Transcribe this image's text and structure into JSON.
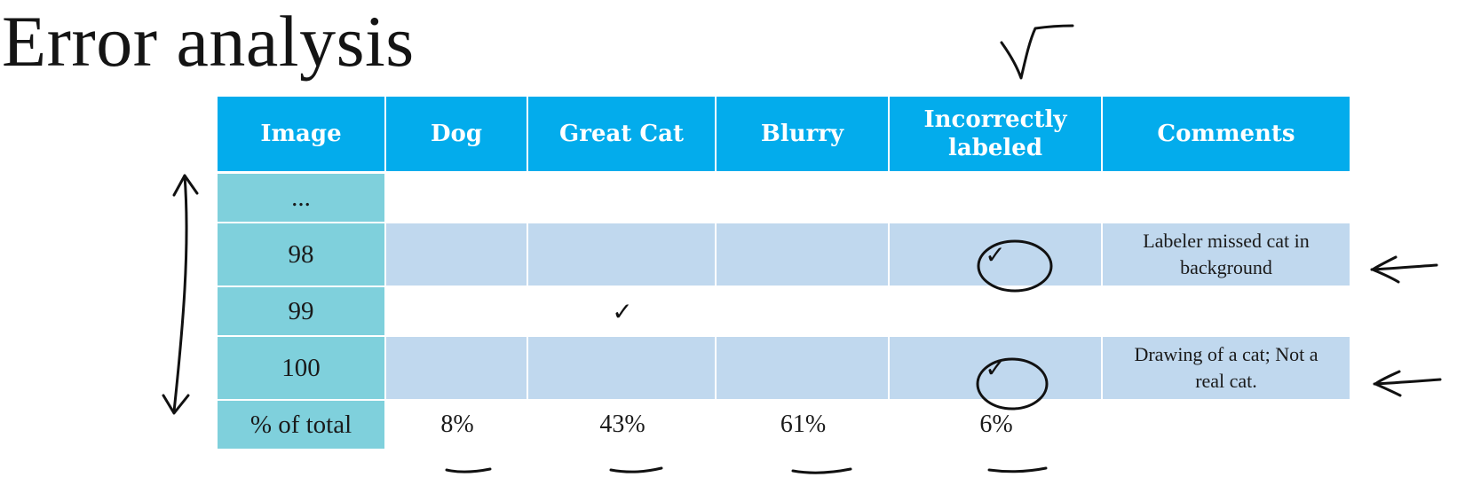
{
  "title": "Error analysis",
  "table": {
    "headers": [
      "Image",
      "Dog",
      "Great Cat",
      "Blurry",
      "Incorrectly labeled",
      "Comments"
    ],
    "rows": [
      {
        "image": "...",
        "dog": "",
        "great_cat": "",
        "blurry": "",
        "incorrectly_labeled": "",
        "comments": ""
      },
      {
        "image": "98",
        "dog": "",
        "great_cat": "",
        "blurry": "",
        "incorrectly_labeled": "✓",
        "comments": "Labeler missed cat in background"
      },
      {
        "image": "99",
        "dog": "",
        "great_cat": "✓",
        "blurry": "",
        "incorrectly_labeled": "",
        "comments": ""
      },
      {
        "image": "100",
        "dog": "",
        "great_cat": "",
        "blurry": "",
        "incorrectly_labeled": "✓",
        "comments": "Drawing of a cat; Not a real cat."
      }
    ],
    "totals": {
      "label": "% of total",
      "dog": "8%",
      "great_cat": "43%",
      "blurry": "61%",
      "incorrectly_labeled": "6%"
    }
  },
  "colors": {
    "header_bg": "#03acec",
    "image_col_bg": "#7fd0dc",
    "band_bg": "#c0d8ee"
  },
  "annotations": [
    "check-mark-icon",
    "double-arrow-icon",
    "left-arrow-icon",
    "circle-icon",
    "underline"
  ]
}
